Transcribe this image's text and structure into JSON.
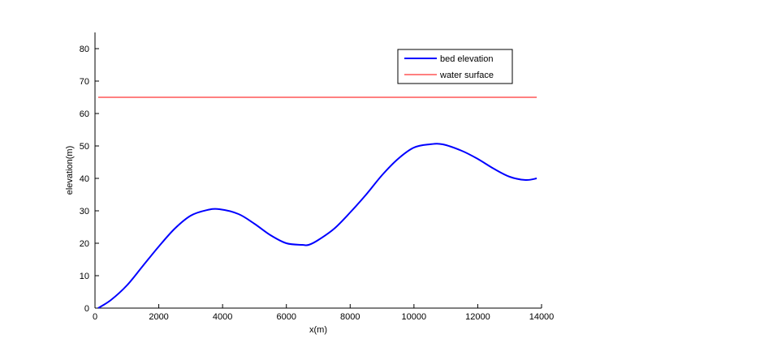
{
  "chart_data": {
    "type": "line",
    "title": "",
    "xlabel": "x(m)",
    "ylabel": "elevation(m)",
    "xlim": [
      0,
      14000
    ],
    "ylim": [
      0,
      85
    ],
    "xticks": [
      0,
      2000,
      4000,
      6000,
      8000,
      10000,
      12000,
      14000
    ],
    "yticks": [
      0,
      10,
      20,
      30,
      40,
      50,
      60,
      70,
      80
    ],
    "grid": false,
    "legend_position": "top-right",
    "series": [
      {
        "name": "bed elevation",
        "color": "#0000ff",
        "x": [
          100,
          500,
          1000,
          1500,
          2000,
          2500,
          3000,
          3500,
          3900,
          4500,
          5000,
          5500,
          6000,
          6500,
          6700,
          7000,
          7500,
          8000,
          8500,
          9000,
          9500,
          10000,
          10500,
          10900,
          11500,
          12000,
          12500,
          13000,
          13500,
          13850
        ],
        "y": [
          0,
          2.5,
          7,
          13,
          19,
          24.5,
          28.5,
          30.2,
          30.5,
          29,
          26,
          22.5,
          20,
          19.5,
          19.5,
          21,
          24.5,
          29.5,
          35,
          41,
          46,
          49.5,
          50.5,
          50.5,
          48.5,
          46,
          43,
          40.5,
          39.5,
          40
        ]
      },
      {
        "name": "water surface",
        "color": "#ff0000",
        "x": [
          100,
          13850
        ],
        "y": [
          65,
          65
        ]
      }
    ]
  }
}
